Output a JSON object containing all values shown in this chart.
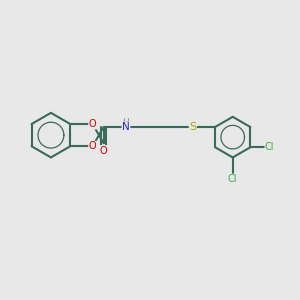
{
  "bg_color": "#e8e8e8",
  "bond_color": "#3a6a5a",
  "bond_width": 1.5,
  "O_color": "#cc0000",
  "N_color": "#2222cc",
  "S_color": "#aaaa00",
  "Cl_color": "#44aa44",
  "fig_size": [
    3.0,
    3.0
  ],
  "dpi": 100,
  "xlim": [
    0,
    12
  ],
  "ylim": [
    0,
    10
  ]
}
